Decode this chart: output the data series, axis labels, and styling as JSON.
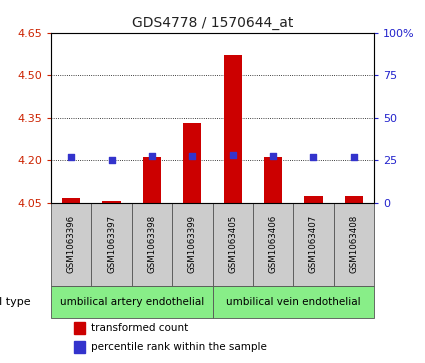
{
  "title": "GDS4778 / 1570644_at",
  "samples": [
    "GSM1063396",
    "GSM1063397",
    "GSM1063398",
    "GSM1063399",
    "GSM1063405",
    "GSM1063406",
    "GSM1063407",
    "GSM1063408"
  ],
  "red_values": [
    4.065,
    4.057,
    4.21,
    4.33,
    4.57,
    4.21,
    4.075,
    4.073
  ],
  "blue_values": [
    4.21,
    4.2,
    4.215,
    4.215,
    4.22,
    4.215,
    4.21,
    4.21
  ],
  "y_min": 4.05,
  "y_max": 4.65,
  "y_ticks": [
    4.05,
    4.2,
    4.35,
    4.5,
    4.65
  ],
  "y2_ticks": [
    0,
    25,
    50,
    75,
    100
  ],
  "y2_tick_labels": [
    "0",
    "25",
    "50",
    "75",
    "100%"
  ],
  "group1_count": 4,
  "group2_count": 4,
  "group1_label": "umbilical artery endothelial",
  "group2_label": "umbilical vein endothelial",
  "cell_type_label": "cell type",
  "legend1": "transformed count",
  "legend2": "percentile rank within the sample",
  "bar_color": "#cc0000",
  "dot_color": "#3333cc",
  "bar_baseline": 4.05,
  "background_color": "#ffffff",
  "group_bg": "#88ee88",
  "sample_cell_bg": "#cccccc",
  "ylabel_color": "#cc2200",
  "y2label_color": "#2222cc",
  "title_color": "#222222",
  "grid_ticks": [
    4.2,
    4.35,
    4.5
  ],
  "bar_width": 0.45
}
